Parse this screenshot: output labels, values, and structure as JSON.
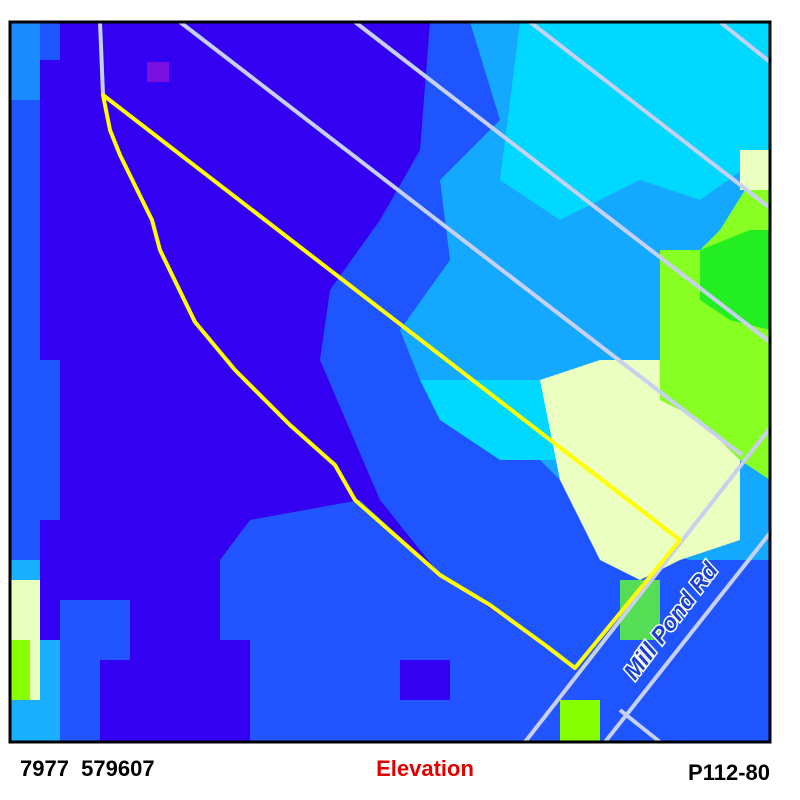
{
  "map": {
    "road_label": "Mill Pond Rd"
  },
  "footer": {
    "left": "7977  579607",
    "center": "Elevation",
    "right": "P112-80"
  }
}
